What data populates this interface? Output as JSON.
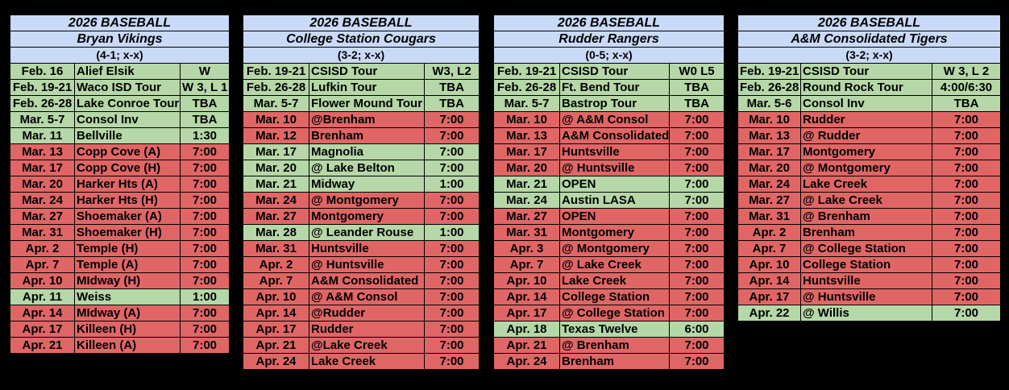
{
  "teams": [
    {
      "title": "2026 BASEBALL",
      "team": "Bryan Vikings",
      "record": "(4-1; x-x)",
      "games": [
        {
          "date": "Feb. 16",
          "opponent": "Alief Elsik",
          "result": "W",
          "status": "done"
        },
        {
          "date": "Feb. 19-21",
          "opponent": "Waco ISD Tour",
          "result": "W 3, L 1",
          "status": "done"
        },
        {
          "date": "Feb. 26-28",
          "opponent": "Lake Conroe Tour",
          "result": "TBA",
          "status": "done"
        },
        {
          "date": "Mar. 5-7",
          "opponent": "Consol Inv",
          "result": "TBA",
          "status": "done"
        },
        {
          "date": "Mar. 11",
          "opponent": "Bellville",
          "result": "1:30",
          "status": "done"
        },
        {
          "date": "Mar. 13",
          "opponent": "Copp Cove (A)",
          "result": "7:00",
          "status": "upcoming"
        },
        {
          "date": "Mar. 17",
          "opponent": "Copp Cove (H)",
          "result": "7:00",
          "status": "upcoming"
        },
        {
          "date": "Mar. 20",
          "opponent": "Harker Hts (A)",
          "result": "7:00",
          "status": "upcoming"
        },
        {
          "date": "Mar. 24",
          "opponent": "Harker Hts (H)",
          "result": "7:00",
          "status": "upcoming"
        },
        {
          "date": "Mar. 27",
          "opponent": "Shoemaker (A)",
          "result": "7:00",
          "status": "upcoming"
        },
        {
          "date": "Mar. 31",
          "opponent": "Shoemaker (H)",
          "result": "7:00",
          "status": "upcoming"
        },
        {
          "date": "Apr. 2",
          "opponent": "Temple (H)",
          "result": "7:00",
          "status": "upcoming"
        },
        {
          "date": "Apr. 7",
          "opponent": "Temple (A)",
          "result": "7:00",
          "status": "upcoming"
        },
        {
          "date": "Apr. 10",
          "opponent": "MIdway (H)",
          "result": "7:00",
          "status": "upcoming"
        },
        {
          "date": "Apr. 11",
          "opponent": "Weiss",
          "result": "1:00",
          "status": "done"
        },
        {
          "date": "Apr. 14",
          "opponent": "MIdway (A)",
          "result": "7:00",
          "status": "upcoming"
        },
        {
          "date": "Apr. 17",
          "opponent": "Killeen (H)",
          "result": "7:00",
          "status": "upcoming"
        },
        {
          "date": "Apr. 21",
          "opponent": "Killeen (A)",
          "result": "7:00",
          "status": "upcoming"
        }
      ]
    },
    {
      "title": "2026 BASEBALL",
      "team": "College Station Cougars",
      "record": "(3-2; x-x)",
      "games": [
        {
          "date": "Feb. 19-21",
          "opponent": "CSISD Tour",
          "result": "W3, L2",
          "status": "done"
        },
        {
          "date": "Feb. 26-28",
          "opponent": "Lufkin Tour",
          "result": "TBA",
          "status": "done"
        },
        {
          "date": "Mar. 5-7",
          "opponent": "Flower Mound Tour",
          "result": "TBA",
          "status": "done"
        },
        {
          "date": "Mar. 10",
          "opponent": "@Brenham",
          "result": "7:00",
          "status": "upcoming"
        },
        {
          "date": "Mar. 12",
          "opponent": "Brenham",
          "result": "7:00",
          "status": "upcoming"
        },
        {
          "date": "Mar. 17",
          "opponent": " Magnolia",
          "result": "7:00",
          "status": "done"
        },
        {
          "date": "Mar. 20",
          "opponent": "@ Lake Belton",
          "result": "7:00",
          "status": "done"
        },
        {
          "date": "Mar. 21",
          "opponent": "Midway",
          "result": "1:00",
          "status": "done"
        },
        {
          "date": "Mar. 24",
          "opponent": "@ Montgomery",
          "result": "7:00",
          "status": "upcoming"
        },
        {
          "date": "Mar. 27",
          "opponent": "Montgomery",
          "result": "7:00",
          "status": "upcoming"
        },
        {
          "date": "Mar. 28",
          "opponent": "@ Leander Rouse",
          "result": "1:00",
          "status": "done"
        },
        {
          "date": "Mar. 31",
          "opponent": "Huntsville",
          "result": "7:00",
          "status": "upcoming"
        },
        {
          "date": "Apr. 2",
          "opponent": "@ Huntsville",
          "result": "7:00",
          "status": "upcoming"
        },
        {
          "date": "Apr. 7",
          "opponent": "A&M Consolidated",
          "result": "7:00",
          "status": "upcoming"
        },
        {
          "date": "Apr. 10",
          "opponent": "@ A&M Consol",
          "result": "7:00",
          "status": "upcoming"
        },
        {
          "date": "Apr. 14",
          "opponent": "@Rudder",
          "result": "7:00",
          "status": "upcoming"
        },
        {
          "date": "Apr. 17",
          "opponent": " Rudder",
          "result": "7:00",
          "status": "upcoming"
        },
        {
          "date": "Apr. 21",
          "opponent": "@Lake Creek",
          "result": "7:00",
          "status": "upcoming"
        },
        {
          "date": "Apr. 24",
          "opponent": "Lake Creek",
          "result": "7:00",
          "status": "upcoming"
        }
      ]
    },
    {
      "title": "2026 BASEBALL",
      "team": "Rudder Rangers",
      "record": "(0-5; x-x)",
      "games": [
        {
          "date": "Feb. 19-21",
          "opponent": "CSISD Tour",
          "result": "W0 L5",
          "status": "done"
        },
        {
          "date": "Feb. 26-28",
          "opponent": "Ft. Bend Tour",
          "result": "TBA",
          "status": "done"
        },
        {
          "date": "Mar. 5-7",
          "opponent": "Bastrop Tour",
          "result": "TBA",
          "status": "done"
        },
        {
          "date": "Mar. 10",
          "opponent": "@ A&M Consol",
          "result": "7:00",
          "status": "upcoming"
        },
        {
          "date": "Mar. 13",
          "opponent": "A&M Consolidated",
          "result": "7:00",
          "status": "upcoming"
        },
        {
          "date": "Mar. 17",
          "opponent": "Huntsville",
          "result": "7:00",
          "status": "upcoming"
        },
        {
          "date": "Mar. 20",
          "opponent": "@ Huntsville",
          "result": "7:00",
          "status": "upcoming"
        },
        {
          "date": "Mar. 21",
          "opponent": "OPEN",
          "result": "7:00",
          "status": "done"
        },
        {
          "date": "Mar. 24",
          "opponent": "Austin LASA",
          "result": "7:00",
          "status": "done"
        },
        {
          "date": "Mar. 27",
          "opponent": "OPEN",
          "result": "7:00",
          "status": "upcoming"
        },
        {
          "date": "Mar. 31",
          "opponent": "Montgomery",
          "result": "7:00",
          "status": "upcoming"
        },
        {
          "date": "Apr. 3",
          "opponent": "@ Montgomery",
          "result": "7:00",
          "status": "upcoming"
        },
        {
          "date": "Apr. 7",
          "opponent": "@ Lake Creek",
          "result": "7:00",
          "status": "upcoming"
        },
        {
          "date": "Apr. 10",
          "opponent": "Lake Creek",
          "result": "7:00",
          "status": "upcoming"
        },
        {
          "date": "Apr. 14",
          "opponent": "College Station",
          "result": "7:00",
          "status": "upcoming"
        },
        {
          "date": "Apr. 17",
          "opponent": "@ College Station",
          "result": "7:00",
          "status": "upcoming"
        },
        {
          "date": "Apr. 18",
          "opponent": "Texas Twelve",
          "result": "6:00",
          "status": "done"
        },
        {
          "date": "Apr. 21",
          "opponent": "@ Brenham",
          "result": "7:00",
          "status": "upcoming"
        },
        {
          "date": "Apr. 24",
          "opponent": "Brenham",
          "result": "7:00",
          "status": "upcoming"
        }
      ]
    },
    {
      "title": "2026 BASEBALL",
      "team": "A&M Consolidated Tigers",
      "record": "(3-2; x-x)",
      "games": [
        {
          "date": "Feb. 19-21",
          "opponent": "CSISD Tour",
          "result": "W 3, L 2",
          "status": "done"
        },
        {
          "date": "Feb. 26-28",
          "opponent": "Round Rock Tour",
          "result": "4:00/6:30",
          "status": "done"
        },
        {
          "date": "Mar. 5-6",
          "opponent": "Consol Inv",
          "result": "TBA",
          "status": "done"
        },
        {
          "date": "Mar. 10",
          "opponent": "Rudder",
          "result": "7:00",
          "status": "upcoming"
        },
        {
          "date": "Mar. 13",
          "opponent": "@ Rudder",
          "result": "7:00",
          "status": "upcoming"
        },
        {
          "date": "Mar. 17",
          "opponent": "Montgomery",
          "result": "7:00",
          "status": "upcoming"
        },
        {
          "date": "Mar. 20",
          "opponent": "@ Montgomery",
          "result": "7:00",
          "status": "upcoming"
        },
        {
          "date": "Mar. 24",
          "opponent": "Lake Creek",
          "result": "7:00",
          "status": "upcoming"
        },
        {
          "date": "Mar. 27",
          "opponent": "@ Lake Creek",
          "result": "7:00",
          "status": "upcoming"
        },
        {
          "date": "Mar. 31",
          "opponent": "@ Brenham",
          "result": "7:00",
          "status": "upcoming"
        },
        {
          "date": "Apr. 2",
          "opponent": "Brenham",
          "result": "7:00",
          "status": "upcoming"
        },
        {
          "date": "Apr. 7",
          "opponent": "@ College Station",
          "result": "7:00",
          "status": "upcoming"
        },
        {
          "date": "Apr. 10",
          "opponent": "College Station",
          "result": "7:00",
          "status": "upcoming"
        },
        {
          "date": "Apr. 14",
          "opponent": "Huntsville",
          "result": "7:00",
          "status": "upcoming"
        },
        {
          "date": "Apr. 17",
          "opponent": "@ Huntsville",
          "result": "7:00",
          "status": "upcoming"
        },
        {
          "date": "Apr. 22",
          "opponent": "@ Willis",
          "result": "7:00",
          "status": "done"
        }
      ]
    }
  ]
}
